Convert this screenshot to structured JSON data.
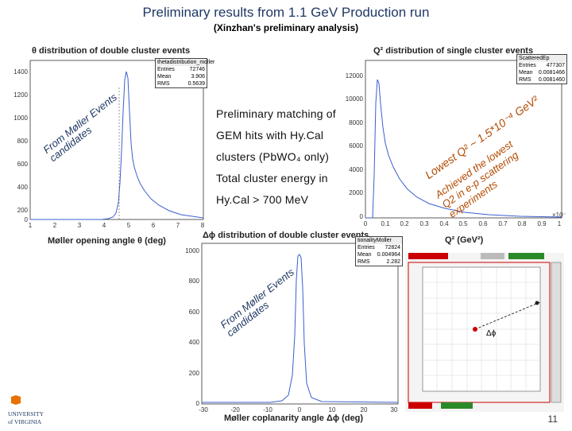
{
  "header": {
    "title": "Preliminary results from 1.1 GeV Production run",
    "subtitle": "(Xinzhan's preliminary analysis)"
  },
  "panels": {
    "theta": {
      "heading": "θ distribution of double cluster events",
      "xlabel": "Møller opening angle θ (deg)",
      "stats": {
        "title": "thetadistribution_moller",
        "rows": [
          [
            "Entries",
            "72746"
          ],
          [
            "Mean",
            "3.906"
          ],
          [
            "RMS",
            "0.5639"
          ]
        ]
      },
      "annotation": "From Møller Events candidates",
      "yticks": [
        "1400",
        "1200",
        "1000",
        "800",
        "600",
        "400",
        "200",
        "0"
      ],
      "xticks": [
        "1",
        "2",
        "3",
        "4",
        "5",
        "6",
        "7",
        "8"
      ]
    },
    "q2": {
      "heading": "Q² distribution of single cluster events",
      "xlabel": "Q² (GeV²)",
      "stats": {
        "title": "ScatteredEp",
        "rows": [
          [
            "Entries",
            "477307"
          ],
          [
            "Mean",
            "0.0081466"
          ],
          [
            "RMS",
            "0.0081460"
          ]
        ]
      },
      "annotation1": "Lowest Q² ~ 1.5*10⁻⁴ GeV²",
      "annotation2": "Achieved the lowest Q2 in e-p scattering experiments",
      "yticks": [
        "12000",
        "10000",
        "8000",
        "6000",
        "4000",
        "2000",
        "0"
      ],
      "xticks": [
        "0",
        "0.1",
        "0.2",
        "0.3",
        "0.4",
        "0.5",
        "0.6",
        "0.7",
        "0.8",
        "0.9",
        "1"
      ],
      "xexp": "×10⁻³"
    },
    "dphi": {
      "heading": "Δϕ distribution of double cluster events",
      "xlabel": "Møller coplanarity angle Δϕ (deg)",
      "stats": {
        "title": "tionalityMoller",
        "rows": [
          [
            "Entries",
            "72824"
          ],
          [
            "Mean",
            "0.004964"
          ],
          [
            "RMS",
            "2.282"
          ]
        ]
      },
      "annotation": "From Møller Events candidates",
      "yticks": [
        "1000",
        "800",
        "600",
        "400",
        "200",
        "0"
      ],
      "xticks": [
        "-30",
        "-20",
        "-10",
        "0",
        "10",
        "20",
        "30"
      ]
    },
    "detector": {
      "label": "Δϕ"
    }
  },
  "overlay_text": {
    "line1": "Preliminary matching of",
    "line2": "GEM hits with Hy.Cal",
    "line3": "clusters (PbWO₄ only)",
    "line4": "Total cluster energy in",
    "line5": "Hy.Cal > 700 MeV"
  },
  "footer": {
    "page_number": "11",
    "logo_line1": "UNIVERSITY",
    "logo_line2": "of VIRGINIA"
  },
  "colors": {
    "title": "#1f3864",
    "annotation": "#b34a00",
    "hist": "#3a5fcd"
  }
}
